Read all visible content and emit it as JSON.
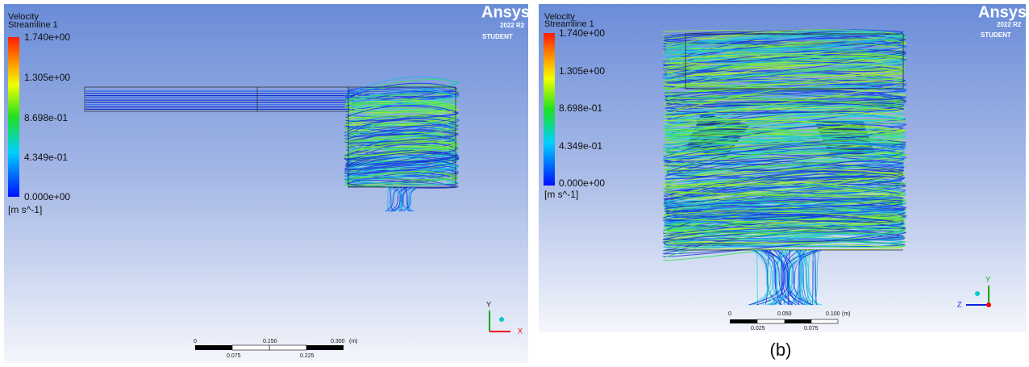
{
  "panel_a": {
    "legend": {
      "title": "Velocity",
      "subtitle": "Streamline 1",
      "labels": [
        "1.740e+00",
        "1.305e+00",
        "8.698e-01",
        "4.349e-01",
        "0.000e+00"
      ],
      "unit": "[m s^-1]"
    },
    "logo": {
      "name": "Ansys",
      "version": "2022 R2",
      "edition": "STUDENT"
    },
    "scale_bar": {
      "top_labels": [
        "0",
        "0.150",
        "0.300"
      ],
      "unit": "(m)",
      "bottom_labels": [
        "0.075",
        "0.225"
      ]
    },
    "axes": {
      "vertical": "Y",
      "horizontal": "X"
    }
  },
  "panel_b": {
    "legend": {
      "title": "Velocity",
      "subtitle": "Streamline 1",
      "labels": [
        "1.740e+00",
        "1.305e+00",
        "8.698e-01",
        "4.349e-01",
        "0.000e+00"
      ],
      "unit": "[m s^-1]"
    },
    "logo": {
      "name": "Ansys",
      "version": "2022 R2",
      "edition": "STUDENT"
    },
    "scale_bar": {
      "top_labels": [
        "0",
        "0.050",
        "0.100"
      ],
      "unit": "(m)",
      "bottom_labels": [
        "0.025",
        "0.075"
      ]
    },
    "axes": {
      "vertical": "Y",
      "horizontal": "Z"
    },
    "caption": "(b)"
  }
}
